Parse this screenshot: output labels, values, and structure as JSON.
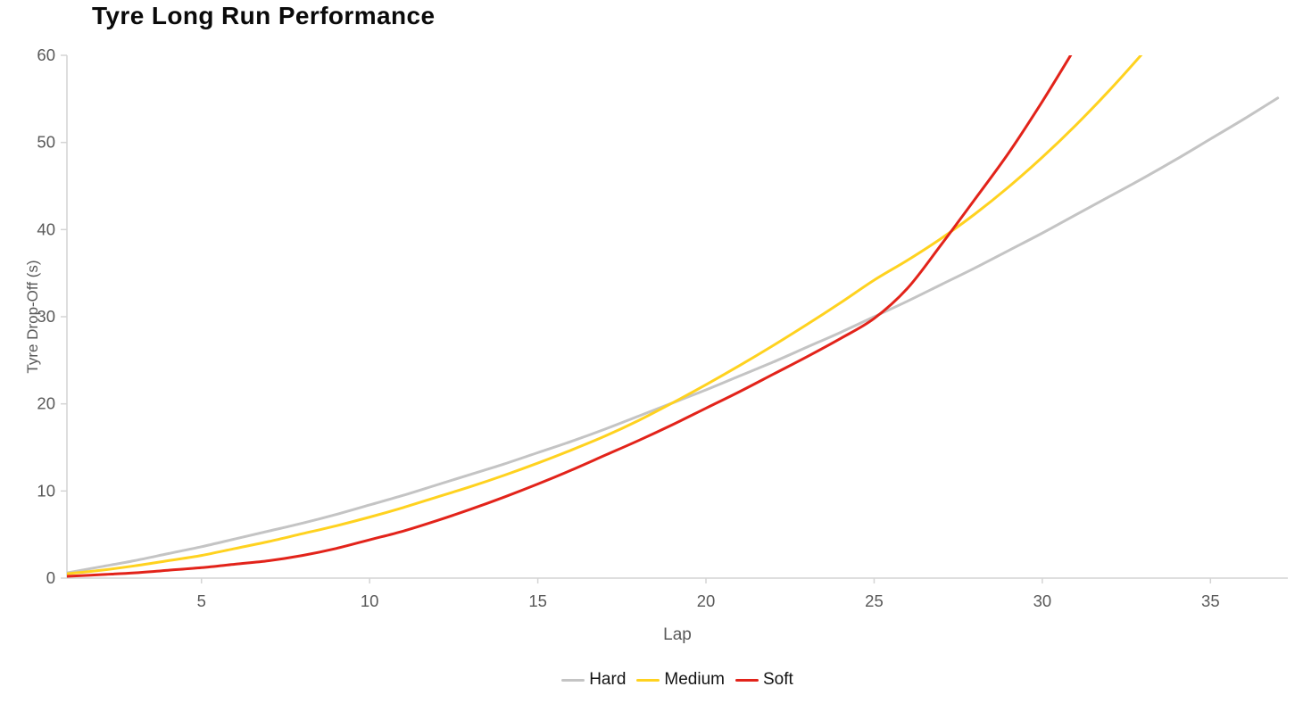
{
  "chart_data": {
    "type": "line",
    "title": "Tyre Long Run Performance",
    "xlabel": "Lap",
    "ylabel": "Tyre Drop-Off (s)",
    "xlim": [
      1,
      37.3
    ],
    "ylim": [
      0,
      60
    ],
    "x_ticks": [
      5,
      10,
      15,
      20,
      25,
      30,
      35
    ],
    "y_ticks": [
      0,
      10,
      20,
      30,
      40,
      50,
      60
    ],
    "grid": false,
    "legend_position": "bottom-center",
    "axis_color": "#d4d4d4",
    "tick_label_color": "#595959",
    "series": [
      {
        "name": "Hard",
        "color": "#c4c4c4",
        "x_start": 1,
        "x_step": 1,
        "values": [
          0.6,
          1.3,
          2.0,
          2.8,
          3.6,
          4.5,
          5.4,
          6.3,
          7.3,
          8.4,
          9.5,
          10.7,
          11.9,
          13.1,
          14.4,
          15.7,
          17.1,
          18.6,
          20.1,
          21.6,
          23.2,
          24.8,
          26.5,
          28.2,
          30.0,
          31.8,
          33.7,
          35.6,
          37.6,
          39.6,
          41.7,
          43.8,
          45.9,
          48.1,
          50.4,
          52.7,
          55.1
        ]
      },
      {
        "name": "Medium",
        "color": "#ffd21f",
        "x_start": 1,
        "x_step": 1,
        "values": [
          0.5,
          0.9,
          1.4,
          2.0,
          2.6,
          3.4,
          4.2,
          5.1,
          6.0,
          7.0,
          8.1,
          9.3,
          10.5,
          11.8,
          13.2,
          14.7,
          16.3,
          18.1,
          20.1,
          22.2,
          24.4,
          26.7,
          29.1,
          31.6,
          34.2,
          36.5,
          39.0,
          41.8,
          44.9,
          48.3,
          52.0,
          56.0,
          60.3,
          64.8
        ]
      },
      {
        "name": "Soft",
        "color": "#e2231a",
        "x_start": 1,
        "x_step": 1,
        "values": [
          0.2,
          0.4,
          0.6,
          0.9,
          1.2,
          1.6,
          2.0,
          2.6,
          3.4,
          4.4,
          5.4,
          6.6,
          7.9,
          9.3,
          10.8,
          12.4,
          14.1,
          15.8,
          17.6,
          19.5,
          21.4,
          23.4,
          25.4,
          27.5,
          29.8,
          33.3,
          38.3,
          43.5,
          48.8,
          54.7,
          61.0
        ]
      }
    ]
  }
}
